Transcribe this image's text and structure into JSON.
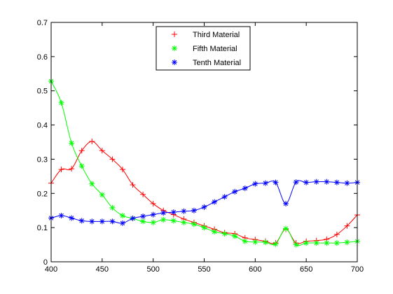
{
  "chart_data": {
    "type": "line",
    "title": "",
    "xlabel": "",
    "ylabel": "",
    "xlim": [
      400,
      700
    ],
    "ylim": [
      0,
      0.7
    ],
    "xticks": [
      400,
      450,
      500,
      550,
      600,
      650,
      700
    ],
    "yticks": [
      0,
      0.1,
      0.2,
      0.3,
      0.4,
      0.5,
      0.6,
      0.7
    ],
    "xtick_labels": [
      "400",
      "450",
      "500",
      "550",
      "600",
      "650",
      "700"
    ],
    "ytick_labels": [
      "0",
      "0.1",
      "0.2",
      "0.3",
      "0.4",
      "0.5",
      "0.6",
      "0.7"
    ],
    "grid": false,
    "legend_position": "top-center",
    "x": [
      400,
      410,
      420,
      430,
      440,
      450,
      460,
      470,
      480,
      490,
      500,
      510,
      520,
      530,
      540,
      550,
      560,
      570,
      580,
      590,
      600,
      610,
      620,
      630,
      640,
      650,
      660,
      670,
      680,
      690,
      700
    ],
    "series": [
      {
        "name": "Third Material",
        "color": "#ff0000",
        "marker": "plus",
        "values": [
          0.23,
          0.27,
          0.272,
          0.325,
          0.352,
          0.325,
          0.3,
          0.27,
          0.225,
          0.197,
          0.17,
          0.15,
          0.138,
          0.125,
          0.115,
          0.105,
          0.095,
          0.085,
          0.082,
          0.07,
          0.065,
          0.06,
          0.055,
          0.095,
          0.055,
          0.06,
          0.062,
          0.066,
          0.08,
          0.105,
          0.137
        ]
      },
      {
        "name": "Fifth Material",
        "color": "#00ff00",
        "marker": "star",
        "values": [
          0.528,
          0.465,
          0.347,
          0.28,
          0.228,
          0.196,
          0.158,
          0.135,
          0.127,
          0.118,
          0.115,
          0.123,
          0.12,
          0.115,
          0.11,
          0.1,
          0.088,
          0.082,
          0.075,
          0.06,
          0.058,
          0.057,
          0.052,
          0.097,
          0.05,
          0.055,
          0.055,
          0.055,
          0.055,
          0.057,
          0.06
        ]
      },
      {
        "name": "Tenth Material",
        "color": "#0000ff",
        "marker": "star",
        "values": [
          0.128,
          0.135,
          0.128,
          0.12,
          0.118,
          0.118,
          0.118,
          0.113,
          0.127,
          0.133,
          0.138,
          0.143,
          0.145,
          0.148,
          0.15,
          0.16,
          0.175,
          0.19,
          0.205,
          0.215,
          0.228,
          0.23,
          0.232,
          0.17,
          0.233,
          0.232,
          0.234,
          0.234,
          0.232,
          0.23,
          0.232
        ]
      }
    ]
  }
}
